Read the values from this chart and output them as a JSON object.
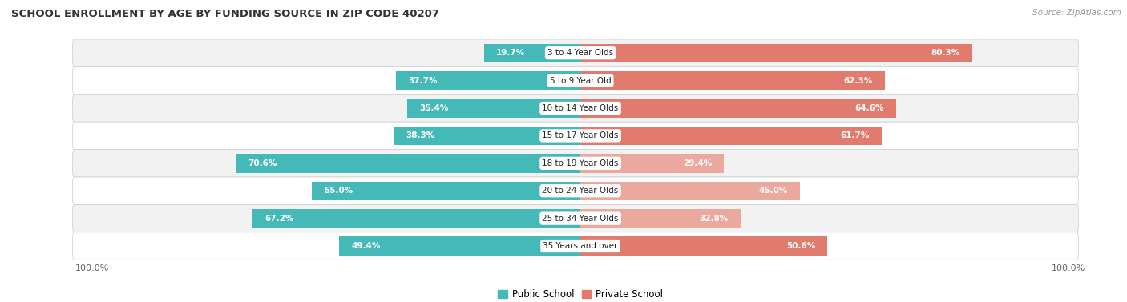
{
  "title": "SCHOOL ENROLLMENT BY AGE BY FUNDING SOURCE IN ZIP CODE 40207",
  "source": "Source: ZipAtlas.com",
  "categories": [
    "3 to 4 Year Olds",
    "5 to 9 Year Old",
    "10 to 14 Year Olds",
    "15 to 17 Year Olds",
    "18 to 19 Year Olds",
    "20 to 24 Year Olds",
    "25 to 34 Year Olds",
    "35 Years and over"
  ],
  "public_values": [
    19.7,
    37.7,
    35.4,
    38.3,
    70.6,
    55.0,
    67.2,
    49.4
  ],
  "private_values": [
    80.3,
    62.3,
    64.6,
    61.7,
    29.4,
    45.0,
    32.8,
    50.6
  ],
  "public_color": "#45B8B8",
  "private_color_strong": "#E07B6E",
  "private_color_weak": "#EAA89E",
  "bg_color": "#FFFFFF",
  "row_bg_light": "#F2F2F2",
  "row_bg_white": "#FFFFFF",
  "title_color": "#333333",
  "source_color": "#999999",
  "label_color_inside": "#FFFFFF",
  "label_color_outside": "#555555",
  "legend_public": "Public School",
  "legend_private": "Private School",
  "inside_threshold": 12.0,
  "private_strong_threshold": 50.0
}
